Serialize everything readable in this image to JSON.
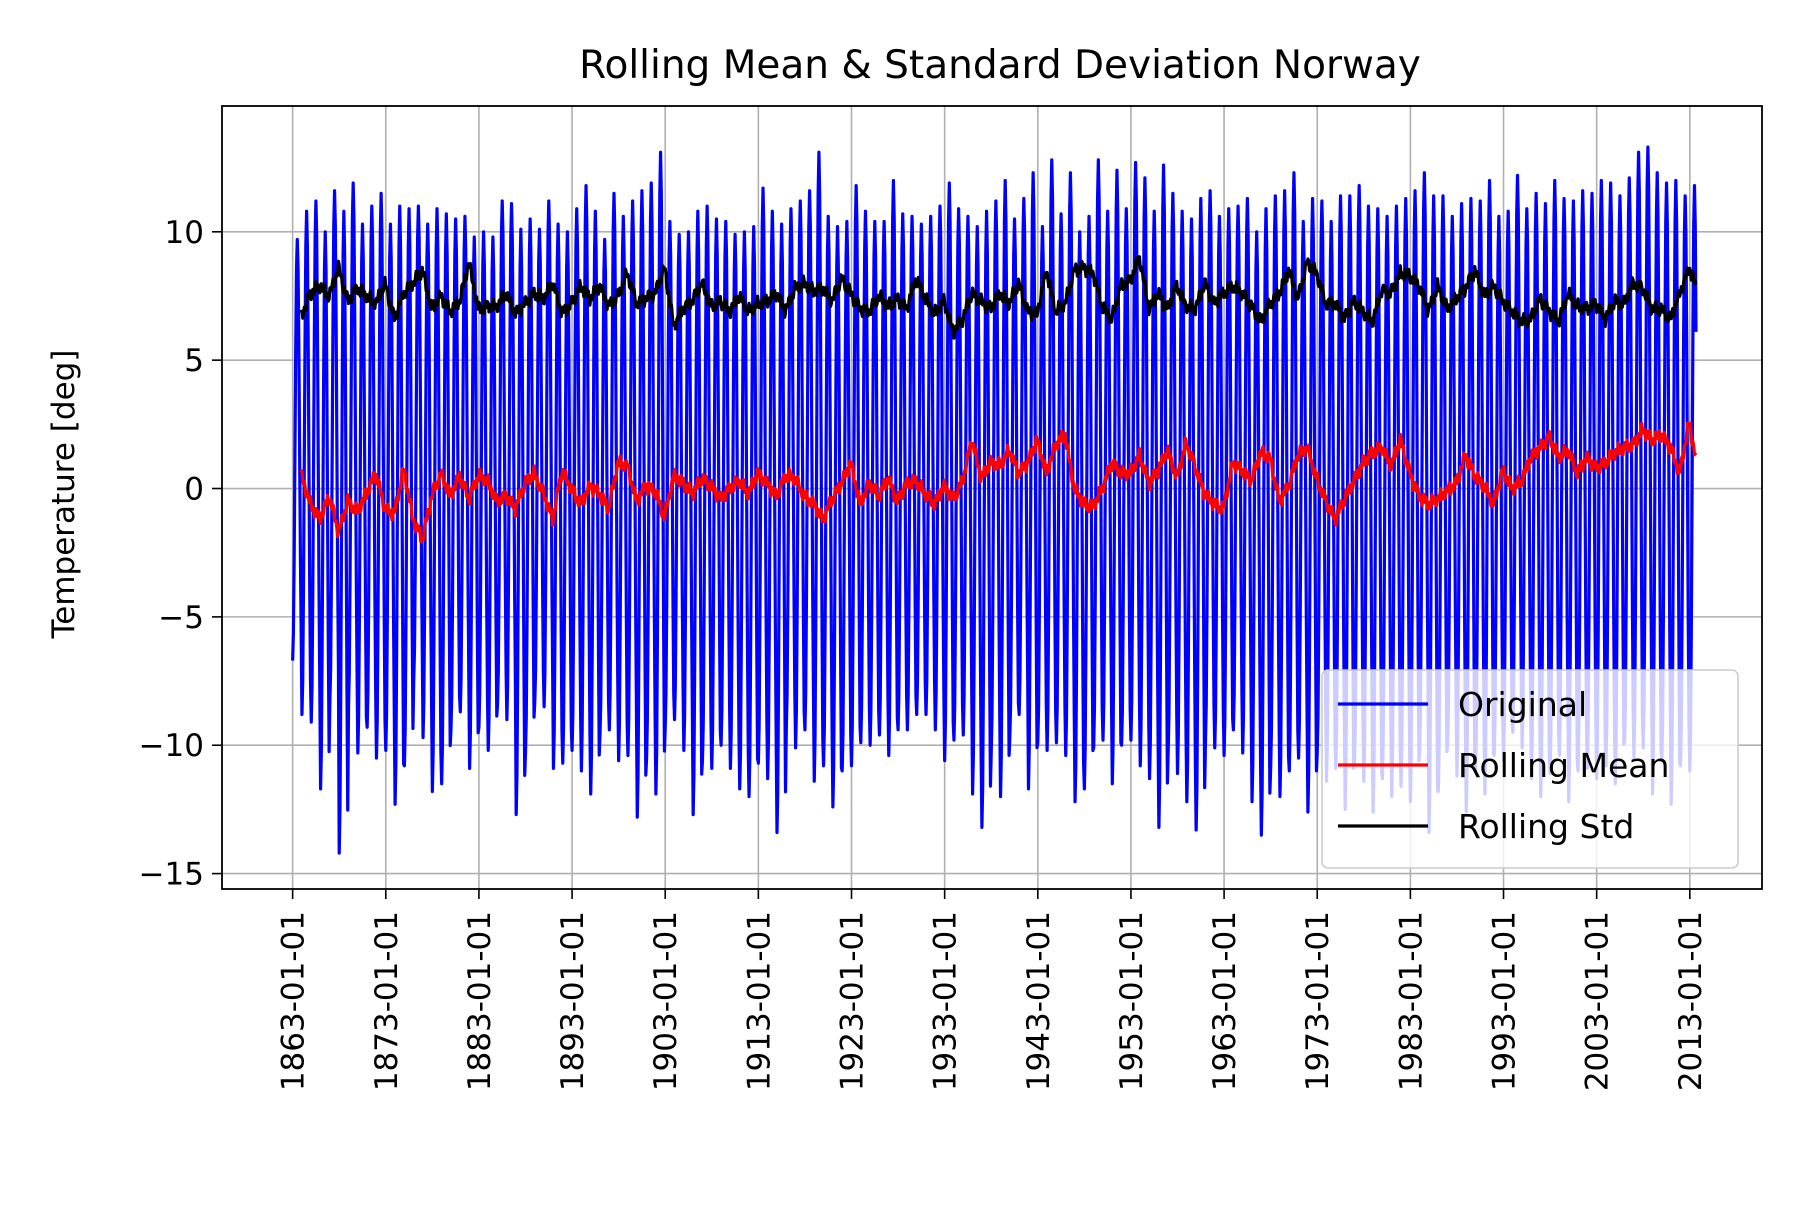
{
  "chart_data": {
    "type": "line",
    "title": "Rolling Mean & Standard Deviation Norway",
    "xlabel": "",
    "ylabel": "Temperature [deg]",
    "ylim": [
      -15.6,
      14.9
    ],
    "xlim": [
      "1855-06-01",
      "2020-10-01"
    ],
    "grid": true,
    "legend_position": "lower-right",
    "x_ticks": [
      "1863-01-01",
      "1873-01-01",
      "1883-01-01",
      "1893-01-01",
      "1903-01-01",
      "1913-01-01",
      "1923-01-01",
      "1933-01-01",
      "1943-01-01",
      "1953-01-01",
      "1963-01-01",
      "1973-01-01",
      "1983-01-01",
      "1993-01-01",
      "2003-01-01",
      "2013-01-01"
    ],
    "y_ticks": [
      -15,
      -10,
      -5,
      0,
      5,
      10
    ],
    "y_tick_labels": [
      "−15",
      "−10",
      "−5",
      "0",
      "5",
      "10"
    ],
    "series": [
      {
        "name": "Original",
        "color": "#0000ff",
        "description": "monthly temperature, annual cycle",
        "start": "1863-01-01",
        "end": "2013-09-01",
        "frequency": "monthly",
        "annual_max": [
          9.7,
          10.8,
          11.2,
          10.0,
          11.6,
          10.8,
          11.9,
          10.3,
          11.0,
          11.5,
          10.3,
          11.0,
          10.9,
          11.0,
          10.3,
          10.9,
          10.7,
          10.5,
          10.6,
          9.8,
          10.0,
          9.8,
          11.2,
          11.1,
          10.1,
          10.5,
          10.1,
          11.2,
          10.3,
          10.0,
          10.9,
          11.8,
          10.8,
          9.7,
          11.5,
          10.6,
          11.2,
          11.6,
          11.9,
          13.1,
          10.4,
          9.9,
          10.0,
          10.8,
          11.0,
          10.5,
          10.4,
          9.9,
          10.0,
          10.2,
          11.7,
          10.8,
          10.3,
          10.9,
          11.2,
          11.6,
          13.1,
          10.6,
          10.2,
          10.4,
          11.8,
          10.8,
          10.4,
          10.4,
          12.0,
          10.7,
          10.6,
          10.3,
          10.6,
          11.0,
          11.9,
          10.9,
          10.6,
          10.2,
          10.8,
          11.2,
          12.0,
          10.5,
          11.3,
          12.3,
          10.2,
          12.8,
          10.7,
          12.3,
          10.0,
          10.6,
          12.8,
          10.8,
          12.4,
          10.9,
          12.7,
          12.1,
          10.8,
          12.6,
          11.5,
          10.8,
          10.5,
          11.3,
          11.6,
          10.6,
          10.9,
          11.0,
          11.3,
          10.0,
          10.9,
          11.4,
          11.6,
          12.3,
          10.4,
          11.3,
          11.2,
          10.4,
          11.4,
          11.4,
          11.8,
          11.0,
          10.9,
          10.6,
          11.0,
          11.3,
          11.6,
          12.3,
          11.4,
          11.4,
          10.6,
          11.1,
          11.3,
          11.2,
          12.0,
          10.6,
          10.8,
          12.2,
          10.9,
          11.5,
          11.1,
          12.0,
          11.3,
          11.2,
          11.6,
          11.5,
          12.0,
          11.9,
          11.4,
          12.1,
          13.1,
          13.3,
          12.3,
          11.9,
          12.0,
          11.4,
          11.8
        ],
        "annual_min": [
          -6.7,
          -8.8,
          -9.1,
          -11.7,
          -8.3,
          -14.2,
          -8.5,
          -10.3,
          -9.3,
          -10.5,
          -10.2,
          -12.3,
          -10.8,
          -7.5,
          -9.7,
          -11.8,
          -11.5,
          -9.4,
          -8.7,
          -10.9,
          -9.3,
          -10.2,
          -8.4,
          -9.0,
          -12.7,
          -10.3,
          -8.3,
          -8.5,
          -10.9,
          -10.7,
          -10.2,
          -11.0,
          -11.9,
          -9.6,
          -9.4,
          -10.6,
          -10.4,
          -12.8,
          -10.5,
          -11.9,
          -9.3,
          -9.0,
          -10.2,
          -12.7,
          -10.6,
          -10.9,
          -10.0,
          -10.9,
          -11.7,
          -12.0,
          -10.7,
          -11.3,
          -13.4,
          -9.4,
          -10.1,
          -9.4,
          -11.4,
          -10.8,
          -12.4,
          -11.0,
          -10.8,
          -9.9,
          -10.0,
          -9.6,
          -10.4,
          -9.4,
          -9.4,
          -8.8,
          -8.8,
          -9.4,
          -10.6,
          -9.8,
          -9.6,
          -11.9,
          -13.2,
          -10.3,
          -12.0,
          -9.7,
          -8.8,
          -11.7,
          -9.9,
          -10.2,
          -9.9,
          -10.4,
          -12.2,
          -11.7,
          -10.1,
          -9.8,
          -11.5,
          -10.0,
          -9.8,
          -10.8,
          -11.3,
          -13.2,
          -10.2,
          -11.1,
          -12.2,
          -13.3,
          -9.9,
          -10.1,
          -10.4,
          -9.4,
          -10.3,
          -12.2,
          -13.5,
          -10.9,
          -12.0,
          -11.0,
          -10.5,
          -12.6,
          -10.3,
          -11.4,
          -10.9,
          -12.5,
          -10.7,
          -11.4,
          -12.6,
          -11.3,
          -12.0,
          -11.6,
          -12.2,
          -10.3,
          -13.4,
          -11.8,
          -10.0,
          -11.2,
          -12.6,
          -11.0,
          -11.9,
          -10.4,
          -10.6,
          -9.5,
          -10.1,
          -11.3,
          -12.0,
          -11.1,
          -10.4,
          -12.2,
          -11.0,
          -10.9,
          -11.3,
          -10.8,
          -11.5,
          -9.9,
          -10.5,
          -10.1,
          -11.9,
          -10.5,
          -12.3,
          -10.8,
          -11.0
        ]
      },
      {
        "name": "Rolling Mean",
        "color": "#ff0000",
        "description": "12-month rolling mean",
        "start": "1863-12-01",
        "end": "2013-09-01",
        "yearly": [
          0.5,
          -0.6,
          -1.2,
          -0.3,
          -1.7,
          -0.5,
          -0.9,
          -0.2,
          0.6,
          -0.8,
          -1.0,
          0.8,
          -1.2,
          -2.0,
          -0.3,
          0.6,
          -0.3,
          0.5,
          -0.4,
          0.5,
          0.3,
          -0.5,
          -0.3,
          -0.8,
          0.2,
          0.6,
          -0.2,
          -1.2,
          0.7,
          0.0,
          -0.6,
          0.1,
          -0.2,
          -0.8,
          1.0,
          0.9,
          -0.5,
          0.1,
          -0.1,
          -1.1,
          0.5,
          0.2,
          -0.2,
          0.4,
          0.1,
          -0.4,
          0.0,
          0.3,
          -0.2,
          0.6,
          0.2,
          -0.3,
          0.5,
          0.4,
          -0.3,
          -0.6,
          -1.2,
          -0.4,
          0.2,
          1.0,
          -0.6,
          0.2,
          -0.3,
          0.4,
          -0.5,
          0.2,
          0.3,
          -0.2,
          -0.6,
          0.1,
          -0.4,
          0.3,
          1.9,
          0.4,
          1.0,
          0.9,
          1.5,
          0.6,
          1.0,
          1.9,
          0.6,
          1.7,
          2.1,
          0.0,
          -0.6,
          -0.7,
          0.0,
          1.0,
          0.6,
          0.6,
          1.3,
          0.2,
          0.7,
          1.5,
          0.4,
          1.8,
          0.8,
          -0.2,
          -0.6,
          -0.8,
          1.0,
          0.7,
          0.3,
          1.4,
          1.2,
          -0.5,
          0.1,
          1.3,
          1.6,
          0.4,
          -0.5,
          -1.2,
          -0.4,
          0.3,
          1.0,
          1.4,
          1.6,
          0.9,
          1.9,
          0.6,
          -0.3,
          -0.6,
          -0.4,
          -0.1,
          0.2,
          1.3,
          0.5,
          0.1,
          -0.6,
          0.7,
          0.0,
          0.3,
          1.2,
          1.6,
          2.0,
          1.2,
          1.5,
          0.6,
          1.2,
          0.8,
          1.0,
          1.4,
          1.6,
          1.7,
          2.3,
          1.9,
          2.1,
          1.6,
          0.6,
          2.6,
          0.6
        ]
      },
      {
        "name": "Rolling Std",
        "color": "#000000",
        "description": "12-month rolling standard deviation",
        "start": "1863-12-01",
        "end": "2013-09-01",
        "yearly": [
          6.7,
          7.6,
          7.9,
          7.5,
          8.6,
          7.3,
          7.8,
          7.5,
          7.2,
          8.0,
          6.6,
          7.6,
          8.0,
          8.5,
          7.0,
          7.5,
          6.9,
          7.3,
          8.8,
          7.0,
          7.1,
          7.1,
          7.6,
          6.8,
          7.2,
          7.6,
          7.4,
          8.0,
          6.8,
          7.2,
          7.9,
          7.4,
          7.9,
          7.1,
          7.5,
          8.4,
          7.2,
          7.4,
          7.6,
          8.6,
          6.3,
          7.0,
          7.3,
          8.0,
          7.1,
          7.3,
          6.9,
          7.5,
          6.9,
          7.2,
          7.3,
          7.6,
          6.9,
          7.8,
          8.0,
          7.7,
          7.8,
          7.3,
          8.2,
          7.6,
          7.0,
          6.9,
          7.5,
          7.1,
          7.4,
          7.0,
          8.2,
          7.4,
          6.8,
          7.3,
          6.1,
          6.6,
          7.6,
          7.3,
          7.0,
          7.6,
          7.2,
          8.0,
          6.9,
          6.8,
          8.5,
          6.9,
          7.2,
          8.5,
          8.6,
          8.4,
          7.1,
          6.6,
          7.9,
          8.1,
          9.0,
          7.0,
          7.6,
          7.0,
          7.9,
          7.1,
          7.0,
          8.0,
          7.2,
          7.6,
          7.9,
          7.6,
          7.1,
          6.5,
          7.2,
          7.6,
          8.5,
          7.4,
          8.8,
          8.4,
          7.2,
          7.2,
          6.6,
          7.3,
          6.9,
          6.5,
          7.7,
          7.6,
          8.4,
          8.3,
          7.9,
          6.9,
          7.9,
          7.0,
          7.4,
          7.8,
          8.5,
          7.5,
          7.9,
          7.3,
          6.9,
          6.5,
          6.6,
          7.4,
          6.9,
          6.5,
          7.6,
          7.1,
          7.0,
          7.2,
          6.6,
          7.3,
          7.2,
          8.0,
          7.8,
          7.0,
          7.0,
          6.6,
          7.6,
          8.6,
          7.6,
          6.4,
          8.0
        ]
      }
    ]
  }
}
